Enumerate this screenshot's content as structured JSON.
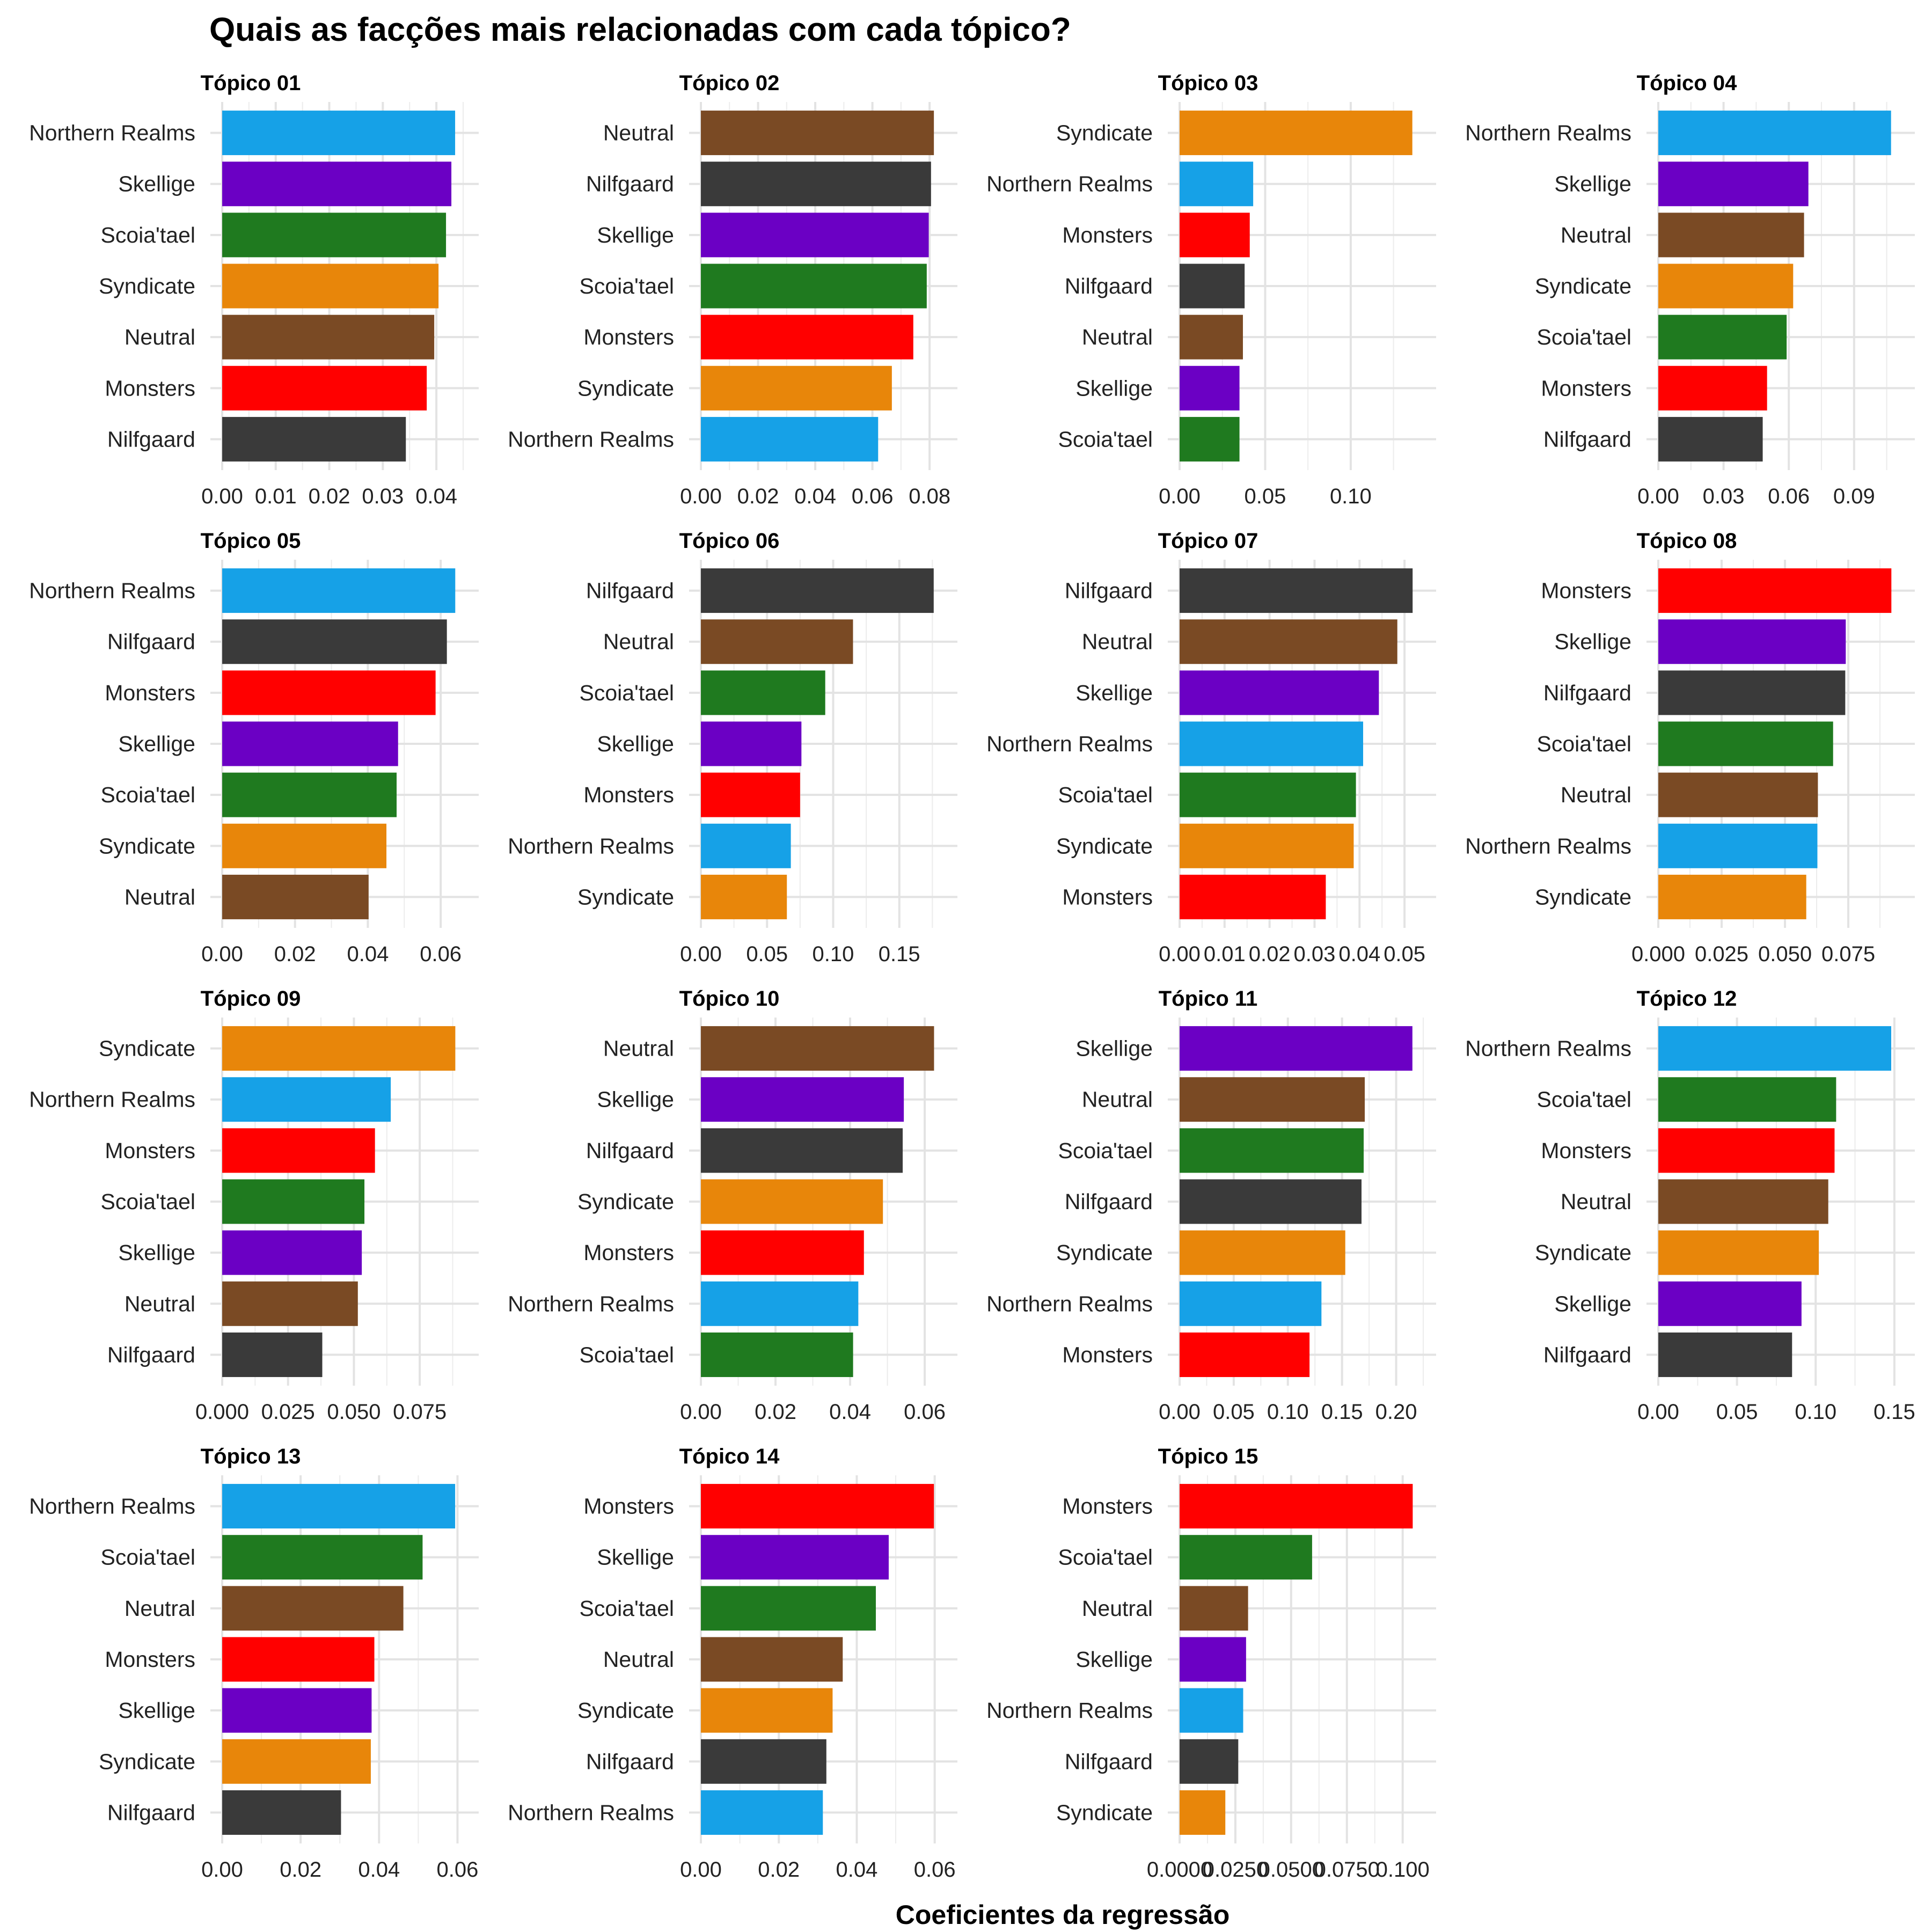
{
  "title": "Quais as facções mais relacionadas com cada tópico?",
  "xlabel": "Coeficientes da regressão",
  "colors": {
    "Northern Realms": "#16a1e7",
    "Skellige": "#6b00c4",
    "Scoia'tael": "#1f7a1f",
    "Syndicate": "#e8860a",
    "Neutral": "#7a4a24",
    "Monsters": "#ff0000",
    "Nilfgaard": "#3a3a3a"
  },
  "chart_data": [
    {
      "type": "bar",
      "orientation": "horizontal",
      "title": "Tópico 01",
      "categories": [
        "Northern Realms",
        "Skellige",
        "Scoia'tael",
        "Syndicate",
        "Neutral",
        "Monsters",
        "Nilfgaard"
      ],
      "values": [
        0.0435,
        0.0428,
        0.0418,
        0.0404,
        0.0396,
        0.0382,
        0.0343
      ],
      "xticks": [
        "0.00",
        "0.01",
        "0.02",
        "0.03",
        "0.04"
      ],
      "xtick_values": [
        0,
        0.01,
        0.02,
        0.03,
        0.04
      ],
      "xlim": [
        0,
        0.0457
      ]
    },
    {
      "type": "bar",
      "orientation": "horizontal",
      "title": "Tópico 02",
      "categories": [
        "Neutral",
        "Nilfgaard",
        "Skellige",
        "Scoia'tael",
        "Monsters",
        "Syndicate",
        "Northern Realms"
      ],
      "values": [
        0.0815,
        0.0805,
        0.0797,
        0.079,
        0.0743,
        0.0668,
        0.062
      ],
      "xticks": [
        "0.00",
        "0.02",
        "0.04",
        "0.06",
        "0.08"
      ],
      "xtick_values": [
        0,
        0.02,
        0.04,
        0.06,
        0.08
      ],
      "xlim": [
        0,
        0.0856
      ]
    },
    {
      "type": "bar",
      "orientation": "horizontal",
      "title": "Tópico 03",
      "categories": [
        "Syndicate",
        "Northern Realms",
        "Monsters",
        "Nilfgaard",
        "Neutral",
        "Skellige",
        "Scoia'tael"
      ],
      "values": [
        0.136,
        0.043,
        0.041,
        0.038,
        0.037,
        0.035,
        0.035
      ],
      "xticks": [
        "0.00",
        "0.05",
        "0.10"
      ],
      "xtick_values": [
        0,
        0.05,
        0.1
      ],
      "xlim": [
        0,
        0.143
      ]
    },
    {
      "type": "bar",
      "orientation": "horizontal",
      "title": "Tópico 04",
      "categories": [
        "Northern Realms",
        "Skellige",
        "Neutral",
        "Syndicate",
        "Scoia'tael",
        "Monsters",
        "Nilfgaard"
      ],
      "values": [
        0.107,
        0.069,
        0.067,
        0.062,
        0.059,
        0.05,
        0.048
      ],
      "xticks": [
        "0.00",
        "0.03",
        "0.06",
        "0.09"
      ],
      "xtick_values": [
        0,
        0.03,
        0.06,
        0.09
      ],
      "xlim": [
        0,
        0.1125
      ]
    },
    {
      "type": "bar",
      "orientation": "horizontal",
      "title": "Tópico 05",
      "categories": [
        "Northern Realms",
        "Nilfgaard",
        "Monsters",
        "Skellige",
        "Scoia'tael",
        "Syndicate",
        "Neutral"
      ],
      "values": [
        0.064,
        0.0617,
        0.0586,
        0.0483,
        0.0479,
        0.0451,
        0.0402
      ],
      "xticks": [
        "0.00",
        "0.02",
        "0.04",
        "0.06"
      ],
      "xtick_values": [
        0,
        0.02,
        0.04,
        0.06
      ],
      "xlim": [
        0,
        0.0672
      ]
    },
    {
      "type": "bar",
      "orientation": "horizontal",
      "title": "Tópico 06",
      "categories": [
        "Nilfgaard",
        "Neutral",
        "Scoia'tael",
        "Skellige",
        "Monsters",
        "Northern Realms",
        "Syndicate"
      ],
      "values": [
        0.176,
        0.115,
        0.094,
        0.076,
        0.075,
        0.068,
        0.065
      ],
      "xticks": [
        "0.00",
        "0.05",
        "0.10",
        "0.15"
      ],
      "xtick_values": [
        0,
        0.05,
        0.1,
        0.15
      ],
      "xlim": [
        0,
        0.185
      ]
    },
    {
      "type": "bar",
      "orientation": "horizontal",
      "title": "Tópico 07",
      "categories": [
        "Nilfgaard",
        "Neutral",
        "Skellige",
        "Northern Realms",
        "Scoia'tael",
        "Syndicate",
        "Monsters"
      ],
      "values": [
        0.0518,
        0.0484,
        0.0443,
        0.0408,
        0.0392,
        0.0387,
        0.0325
      ],
      "xticks": [
        "0.00",
        "0.01",
        "0.02",
        "0.03",
        "0.04",
        "0.05"
      ],
      "xtick_values": [
        0,
        0.01,
        0.02,
        0.03,
        0.04,
        0.05
      ],
      "xlim": [
        0,
        0.0544
      ]
    },
    {
      "type": "bar",
      "orientation": "horizontal",
      "title": "Tópico 08",
      "categories": [
        "Monsters",
        "Skellige",
        "Nilfgaard",
        "Scoia'tael",
        "Neutral",
        "Northern Realms",
        "Syndicate"
      ],
      "values": [
        0.092,
        0.074,
        0.0738,
        0.069,
        0.063,
        0.0628,
        0.0584
      ],
      "xticks": [
        "0.000",
        "0.025",
        "0.050",
        "0.075"
      ],
      "xtick_values": [
        0,
        0.025,
        0.05,
        0.075
      ],
      "xlim": [
        0,
        0.0966
      ]
    },
    {
      "type": "bar",
      "orientation": "horizontal",
      "title": "Tópico 09",
      "categories": [
        "Syndicate",
        "Northern Realms",
        "Monsters",
        "Scoia'tael",
        "Skellige",
        "Neutral",
        "Nilfgaard"
      ],
      "values": [
        0.0885,
        0.064,
        0.058,
        0.054,
        0.053,
        0.0515,
        0.038
      ],
      "xticks": [
        "0.000",
        "0.025",
        "0.050",
        "0.075"
      ],
      "xtick_values": [
        0,
        0.025,
        0.05,
        0.075
      ],
      "xlim": [
        0,
        0.0929
      ]
    },
    {
      "type": "bar",
      "orientation": "horizontal",
      "title": "Tópico 10",
      "categories": [
        "Neutral",
        "Skellige",
        "Nilfgaard",
        "Syndicate",
        "Monsters",
        "Northern Realms",
        "Scoia'tael"
      ],
      "values": [
        0.0625,
        0.0544,
        0.0541,
        0.0488,
        0.0437,
        0.0422,
        0.0408
      ],
      "xticks": [
        "0.00",
        "0.02",
        "0.04",
        "0.06"
      ],
      "xtick_values": [
        0,
        0.02,
        0.04,
        0.06
      ],
      "xlim": [
        0,
        0.0656
      ]
    },
    {
      "type": "bar",
      "orientation": "horizontal",
      "title": "Tópico 11",
      "categories": [
        "Skellige",
        "Neutral",
        "Scoia'tael",
        "Nilfgaard",
        "Syndicate",
        "Northern Realms",
        "Monsters"
      ],
      "values": [
        0.215,
        0.171,
        0.17,
        0.168,
        0.153,
        0.131,
        0.12
      ],
      "xticks": [
        "0.00",
        "0.05",
        "0.10",
        "0.15",
        "0.20"
      ],
      "xtick_values": [
        0,
        0.05,
        0.1,
        0.15,
        0.2
      ],
      "xlim": [
        0,
        0.226
      ]
    },
    {
      "type": "bar",
      "orientation": "horizontal",
      "title": "Tópico 12",
      "categories": [
        "Northern Realms",
        "Scoia'tael",
        "Monsters",
        "Neutral",
        "Syndicate",
        "Skellige",
        "Nilfgaard"
      ],
      "values": [
        0.148,
        0.113,
        0.112,
        0.108,
        0.102,
        0.091,
        0.085
      ],
      "xticks": [
        "0.00",
        "0.05",
        "0.10",
        "0.15"
      ],
      "xtick_values": [
        0,
        0.05,
        0.1,
        0.15
      ],
      "xlim": [
        0,
        0.1555
      ]
    },
    {
      "type": "bar",
      "orientation": "horizontal",
      "title": "Tópico 13",
      "categories": [
        "Northern Realms",
        "Scoia'tael",
        "Neutral",
        "Monsters",
        "Skellige",
        "Syndicate",
        "Nilfgaard"
      ],
      "values": [
        0.0594,
        0.0511,
        0.0462,
        0.0388,
        0.0381,
        0.0379,
        0.0303
      ],
      "xticks": [
        "0.00",
        "0.02",
        "0.04",
        "0.06"
      ],
      "xtick_values": [
        0,
        0.02,
        0.04,
        0.06
      ],
      "xlim": [
        0,
        0.0624
      ]
    },
    {
      "type": "bar",
      "orientation": "horizontal",
      "title": "Tópico 14",
      "categories": [
        "Monsters",
        "Skellige",
        "Scoia'tael",
        "Neutral",
        "Syndicate",
        "Nilfgaard",
        "Northern Realms"
      ],
      "values": [
        0.0598,
        0.0482,
        0.0449,
        0.0364,
        0.0338,
        0.0322,
        0.0313
      ],
      "xticks": [
        "0.00",
        "0.02",
        "0.04",
        "0.06"
      ],
      "xtick_values": [
        0,
        0.02,
        0.04,
        0.06
      ],
      "xlim": [
        0,
        0.0628
      ]
    },
    {
      "type": "bar",
      "orientation": "horizontal",
      "title": "Tópico 15",
      "categories": [
        "Monsters",
        "Scoia'tael",
        "Neutral",
        "Skellige",
        "Northern Realms",
        "Nilfgaard",
        "Syndicate"
      ],
      "values": [
        0.1045,
        0.0594,
        0.0307,
        0.0298,
        0.0285,
        0.0263,
        0.0205
      ],
      "xticks": [
        "0.0000",
        "0.0250",
        "0.0500",
        "0.0750",
        "0.100"
      ],
      "xtick_values": [
        0,
        0.025,
        0.05,
        0.075,
        0.1
      ],
      "xlim": [
        0,
        0.1097
      ]
    }
  ]
}
